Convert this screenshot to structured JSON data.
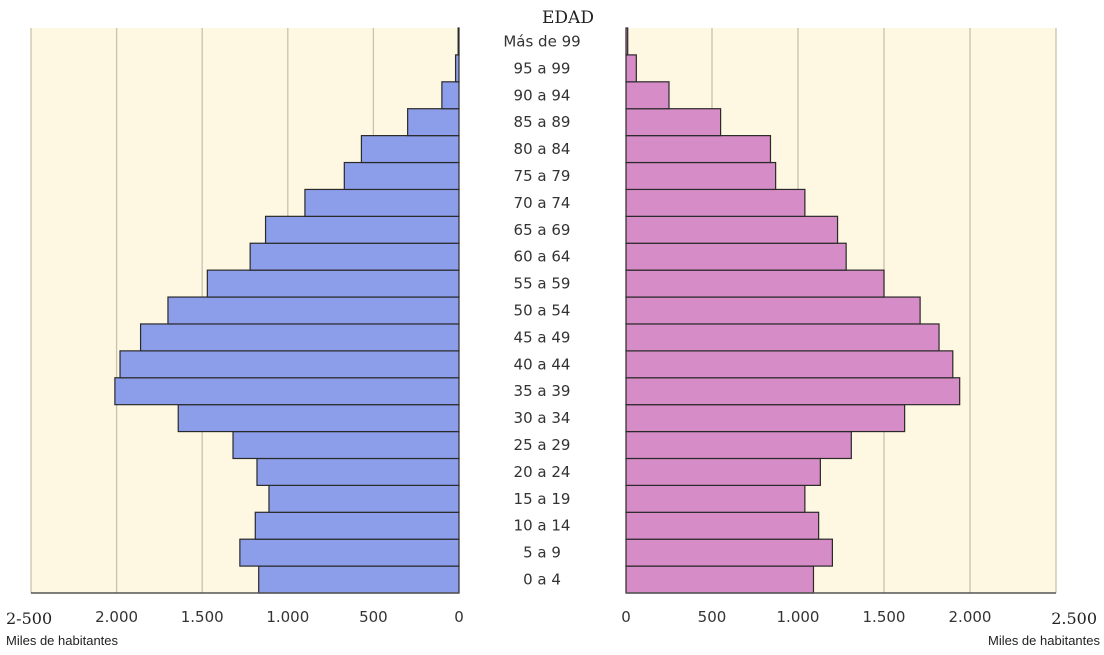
{
  "chart_data": {
    "type": "bar",
    "title": "EDAD",
    "categories": [
      "0 a 4",
      "5 a 9",
      "10 a 14",
      "15 a 19",
      "20 a 24",
      "25 a 29",
      "30 a 34",
      "35 a 39",
      "40 a 44",
      "45 a 49",
      "50 a 54",
      "55 a 59",
      "60 a 64",
      "65 a 69",
      "70 a 74",
      "75 a 79",
      "80 a 84",
      "85 a 89",
      "90 a 94",
      "95 a 99",
      "Más de 99"
    ],
    "series": [
      {
        "side": "left",
        "color": "#8c9eea",
        "values": [
          1170,
          1280,
          1190,
          1110,
          1180,
          1320,
          1640,
          2010,
          1980,
          1860,
          1700,
          1470,
          1220,
          1130,
          900,
          670,
          570,
          300,
          100,
          20,
          5
        ]
      },
      {
        "side": "right",
        "color": "#d68cc6",
        "values": [
          1090,
          1200,
          1120,
          1040,
          1130,
          1310,
          1620,
          1940,
          1900,
          1820,
          1710,
          1500,
          1280,
          1230,
          1040,
          870,
          840,
          550,
          250,
          60,
          10
        ]
      }
    ],
    "left_axis": {
      "ticks": [
        0,
        500,
        1000,
        1500,
        2000
      ],
      "tick_labels": [
        "0",
        "500",
        "1.000",
        "1.500",
        "2.000"
      ],
      "edge_label": "2-500",
      "unit_label": "Miles de habitantes",
      "range": [
        0,
        2500
      ]
    },
    "right_axis": {
      "ticks": [
        0,
        500,
        1000,
        1500,
        2000
      ],
      "tick_labels": [
        "0",
        "500",
        "1.000",
        "1.500",
        "2.000"
      ],
      "edge_label": "2.500",
      "unit_label": "Miles de habitantes",
      "range": [
        0,
        2500
      ]
    },
    "colors": {
      "background": "#fef7e1",
      "grid": "#c9c2ae",
      "bar_stroke": "#2a2a2a"
    },
    "grid": true
  }
}
